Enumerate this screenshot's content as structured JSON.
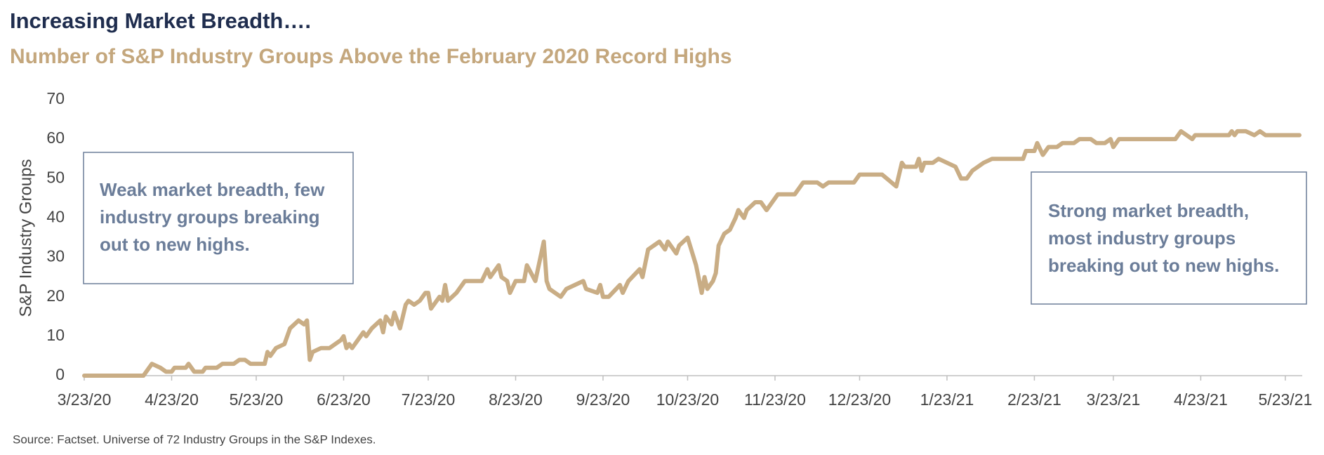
{
  "chart_data": {
    "type": "line",
    "title": "Increasing Market Breadth….",
    "subtitle": "Number of S&P Industry Groups Above the February 2020 Record Highs",
    "ylabel": "S&P Industry Groups",
    "source": "Source: Factset. Universe of 72 Industry Groups in the S&P Indexes.",
    "annotations": [
      {
        "lines": [
          "Weak market breadth, few",
          "industry groups breaking",
          "out to new highs."
        ]
      },
      {
        "lines": [
          "Strong market breadth,",
          "most industry groups",
          "breaking out to new highs."
        ]
      }
    ],
    "x": [
      "2020-03-23",
      "2020-04-13",
      "2020-04-14",
      "2020-04-16",
      "2020-04-19",
      "2020-04-21",
      "2020-04-23",
      "2020-04-24",
      "2020-04-28",
      "2020-04-29",
      "2020-05-01",
      "2020-05-04",
      "2020-05-05",
      "2020-05-09",
      "2020-05-11",
      "2020-05-15",
      "2020-05-17",
      "2020-05-19",
      "2020-05-21",
      "2020-05-26",
      "2020-05-27",
      "2020-05-28",
      "2020-05-30",
      "2020-06-02",
      "2020-06-04",
      "2020-06-07",
      "2020-06-09",
      "2020-06-10",
      "2020-06-11",
      "2020-06-12",
      "2020-06-15",
      "2020-06-18",
      "2020-06-20",
      "2020-06-22",
      "2020-06-23",
      "2020-06-24",
      "2020-06-25",
      "2020-06-26",
      "2020-06-28",
      "2020-06-30",
      "2020-07-01",
      "2020-07-03",
      "2020-07-06",
      "2020-07-07",
      "2020-07-08",
      "2020-07-10",
      "2020-07-11",
      "2020-07-12",
      "2020-07-13",
      "2020-07-15",
      "2020-07-16",
      "2020-07-18",
      "2020-07-20",
      "2020-07-21",
      "2020-07-22",
      "2020-07-23",
      "2020-07-24",
      "2020-07-27",
      "2020-07-28",
      "2020-07-29",
      "2020-07-30",
      "2020-08-02",
      "2020-08-05",
      "2020-08-11",
      "2020-08-13",
      "2020-08-14",
      "2020-08-17",
      "2020-08-18",
      "2020-08-20",
      "2020-08-21",
      "2020-08-23",
      "2020-08-26",
      "2020-08-27",
      "2020-08-30",
      "2020-09-02",
      "2020-09-03",
      "2020-09-04",
      "2020-09-08",
      "2020-09-10",
      "2020-09-13",
      "2020-09-16",
      "2020-09-17",
      "2020-09-21",
      "2020-09-22",
      "2020-09-23",
      "2020-09-25",
      "2020-09-29",
      "2020-09-30",
      "2020-10-02",
      "2020-10-06",
      "2020-10-07",
      "2020-10-09",
      "2020-10-11",
      "2020-10-13",
      "2020-10-15",
      "2020-10-16",
      "2020-10-19",
      "2020-10-20",
      "2020-10-23",
      "2020-10-26",
      "2020-10-28",
      "2020-10-29",
      "2020-10-30",
      "2020-11-01",
      "2020-11-02",
      "2020-11-03",
      "2020-11-05",
      "2020-11-07",
      "2020-11-09",
      "2020-11-10",
      "2020-11-12",
      "2020-11-13",
      "2020-11-16",
      "2020-11-18",
      "2020-11-20",
      "2020-11-22",
      "2020-11-24",
      "2020-11-30",
      "2020-12-01",
      "2020-12-03",
      "2020-12-08",
      "2020-12-10",
      "2020-12-12",
      "2020-12-21",
      "2020-12-23",
      "2020-12-31",
      "2021-01-05",
      "2021-01-07",
      "2021-01-08",
      "2021-01-12",
      "2021-01-13",
      "2021-01-14",
      "2021-01-15",
      "2021-01-18",
      "2021-01-20",
      "2021-01-23",
      "2021-01-26",
      "2021-01-28",
      "2021-01-30",
      "2021-02-01",
      "2021-02-03",
      "2021-02-05",
      "2021-02-08",
      "2021-02-19",
      "2021-02-20",
      "2021-02-23",
      "2021-02-24",
      "2021-02-26",
      "2021-02-28",
      "2021-03-03",
      "2021-03-05",
      "2021-03-09",
      "2021-03-11",
      "2021-03-15",
      "2021-03-17",
      "2021-03-20",
      "2021-03-22",
      "2021-03-23",
      "2021-03-25",
      "2021-04-14",
      "2021-04-16",
      "2021-04-20",
      "2021-04-21",
      "2021-05-03",
      "2021-05-04",
      "2021-05-05",
      "2021-05-06",
      "2021-05-09",
      "2021-05-12",
      "2021-05-14",
      "2021-05-16",
      "2021-05-28"
    ],
    "series": [
      {
        "name": "S&P Industry Groups",
        "color": "#c9ad85",
        "values": [
          0,
          0,
          1,
          3,
          2,
          1,
          1,
          2,
          2,
          3,
          1,
          1,
          2,
          2,
          3,
          3,
          4,
          4,
          3,
          3,
          6,
          5,
          7,
          8,
          12,
          14,
          13,
          14,
          4,
          6,
          7,
          7,
          8,
          9,
          10,
          7,
          8,
          7,
          9,
          11,
          10,
          12,
          14,
          11,
          15,
          13,
          16,
          14,
          12,
          18,
          19,
          18,
          19,
          20,
          21,
          21,
          17,
          20,
          19,
          23,
          19,
          21,
          24,
          24,
          27,
          25,
          28,
          25,
          24,
          21,
          24,
          24,
          28,
          24,
          34,
          24,
          22,
          20,
          22,
          23,
          24,
          22,
          21,
          23,
          20,
          20,
          23,
          21,
          24,
          27,
          25,
          32,
          33,
          34,
          32,
          34,
          31,
          33,
          35,
          28,
          21,
          25,
          22,
          24,
          26,
          33,
          36,
          37,
          40,
          42,
          40,
          42,
          44,
          44,
          42,
          44,
          46,
          46,
          47,
          49,
          49,
          48,
          49,
          49,
          51,
          51,
          48,
          54,
          53,
          53,
          55,
          52,
          54,
          54,
          55,
          54,
          53,
          50,
          50,
          52,
          53,
          54,
          55,
          55,
          57,
          57,
          59,
          56,
          58,
          58,
          59,
          59,
          60,
          60,
          59,
          59,
          60,
          58,
          60,
          60,
          62,
          60,
          61,
          61,
          62,
          61,
          62,
          62,
          61,
          62,
          61,
          61
        ]
      }
    ],
    "xlim": [
      "2020-03-23",
      "2021-05-29"
    ],
    "xticks": [
      {
        "value": "2020-03-23",
        "label": "3/23/20"
      },
      {
        "value": "2020-04-23",
        "label": "4/23/20"
      },
      {
        "value": "2020-05-23",
        "label": "5/23/20"
      },
      {
        "value": "2020-06-23",
        "label": "6/23/20"
      },
      {
        "value": "2020-07-23",
        "label": "7/23/20"
      },
      {
        "value": "2020-08-23",
        "label": "8/23/20"
      },
      {
        "value": "2020-09-23",
        "label": "9/23/20"
      },
      {
        "value": "2020-10-23",
        "label": "10/23/20"
      },
      {
        "value": "2020-11-23",
        "label": "11/23/20"
      },
      {
        "value": "2020-12-23",
        "label": "12/23/20"
      },
      {
        "value": "2021-01-23",
        "label": "1/23/21"
      },
      {
        "value": "2021-02-23",
        "label": "2/23/21"
      },
      {
        "value": "2021-03-23",
        "label": "3/23/21"
      },
      {
        "value": "2021-04-23",
        "label": "4/23/21"
      },
      {
        "value": "2021-05-23",
        "label": "5/23/21"
      }
    ],
    "ylim": [
      0,
      70
    ],
    "yticks": [
      0,
      10,
      20,
      30,
      40,
      50,
      60,
      70
    ],
    "grid": false
  }
}
